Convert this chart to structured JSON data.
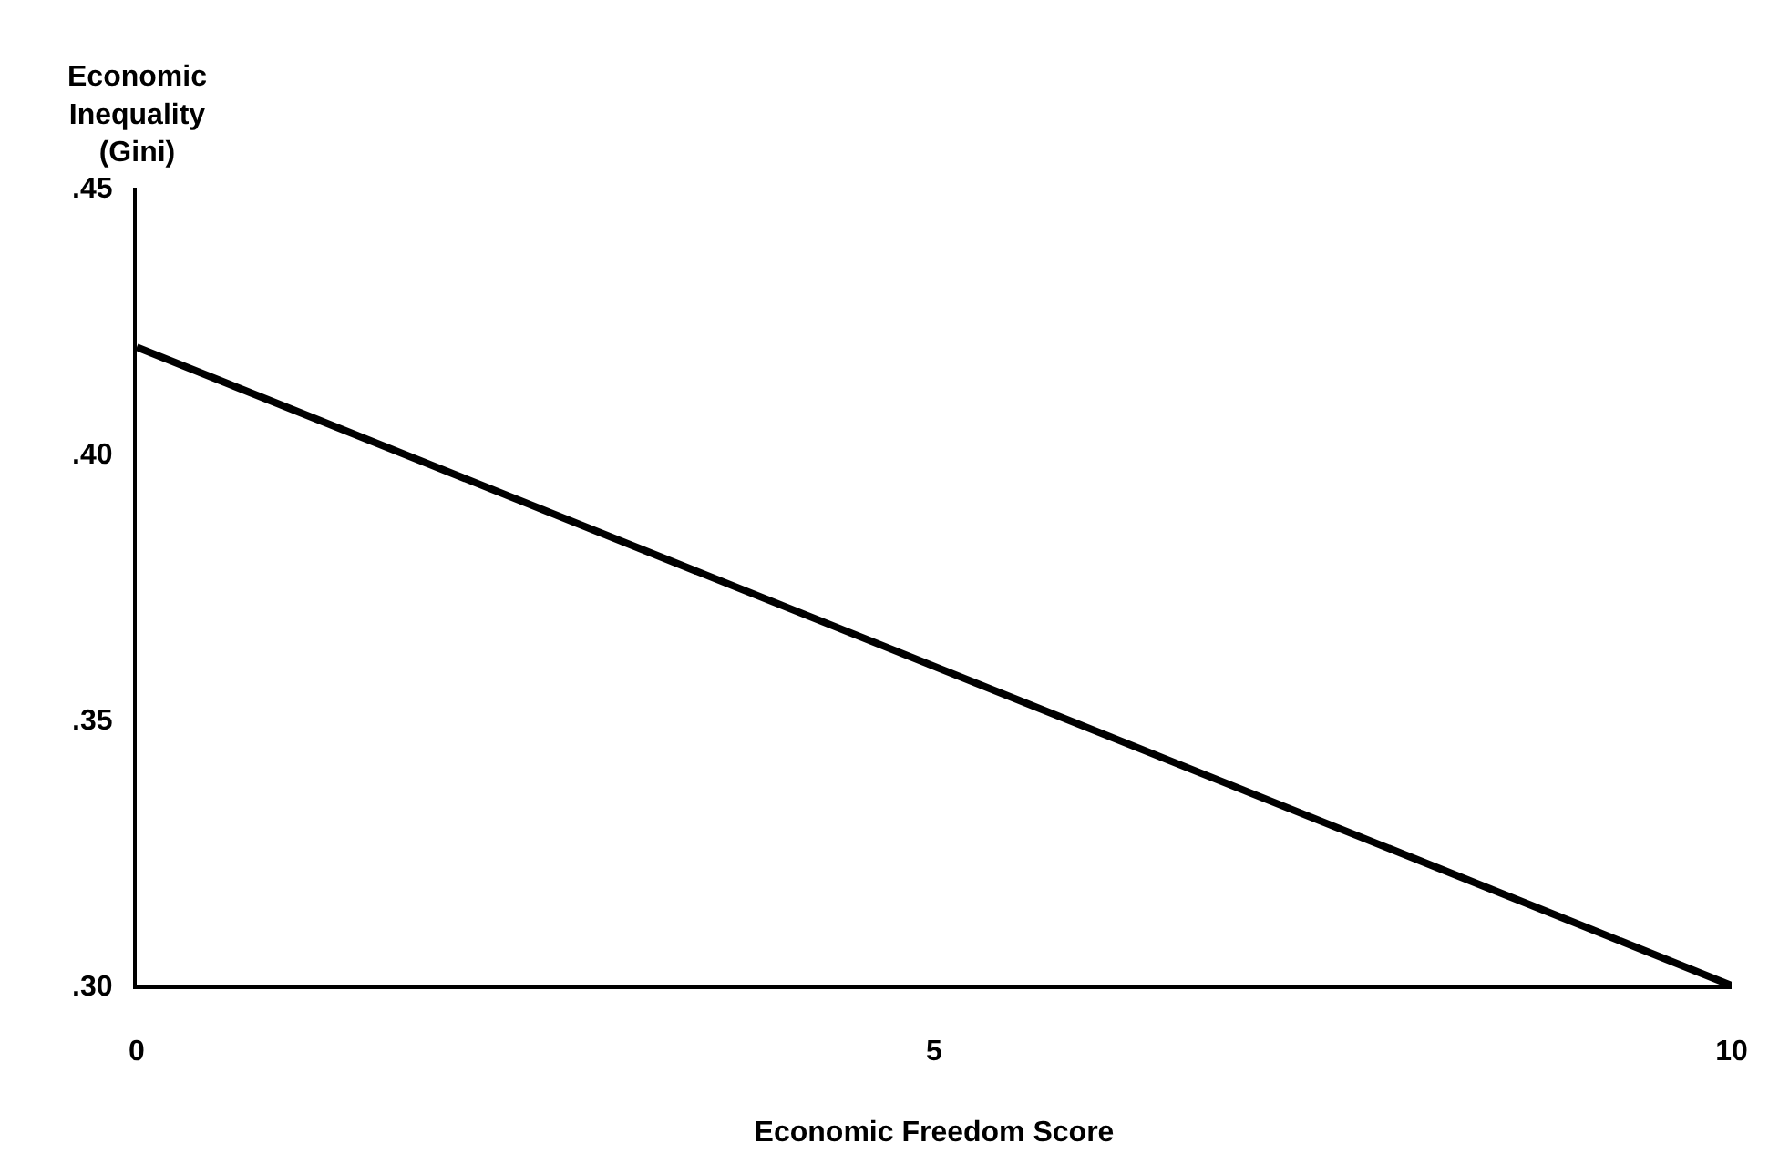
{
  "chart_data": {
    "type": "line",
    "xlabel": "Economic Freedom Score",
    "ylabel": "Economic\nInequality\n(Gini)",
    "x": [
      0,
      10
    ],
    "series": [
      {
        "color": "#000000",
        "values": [
          0.42,
          0.3
        ]
      }
    ],
    "xlim": [
      0,
      10
    ],
    "xticks": [
      0,
      5,
      10
    ],
    "ylim": [
      0.3,
      0.45
    ],
    "yticks": [
      {
        "value": 0.3,
        "label": ".30"
      },
      {
        "value": 0.35,
        "label": ".35"
      },
      {
        "value": 0.4,
        "label": ".40"
      },
      {
        "value": 0.45,
        "label": ".45"
      }
    ],
    "marker": "none",
    "line_style": "solid"
  }
}
